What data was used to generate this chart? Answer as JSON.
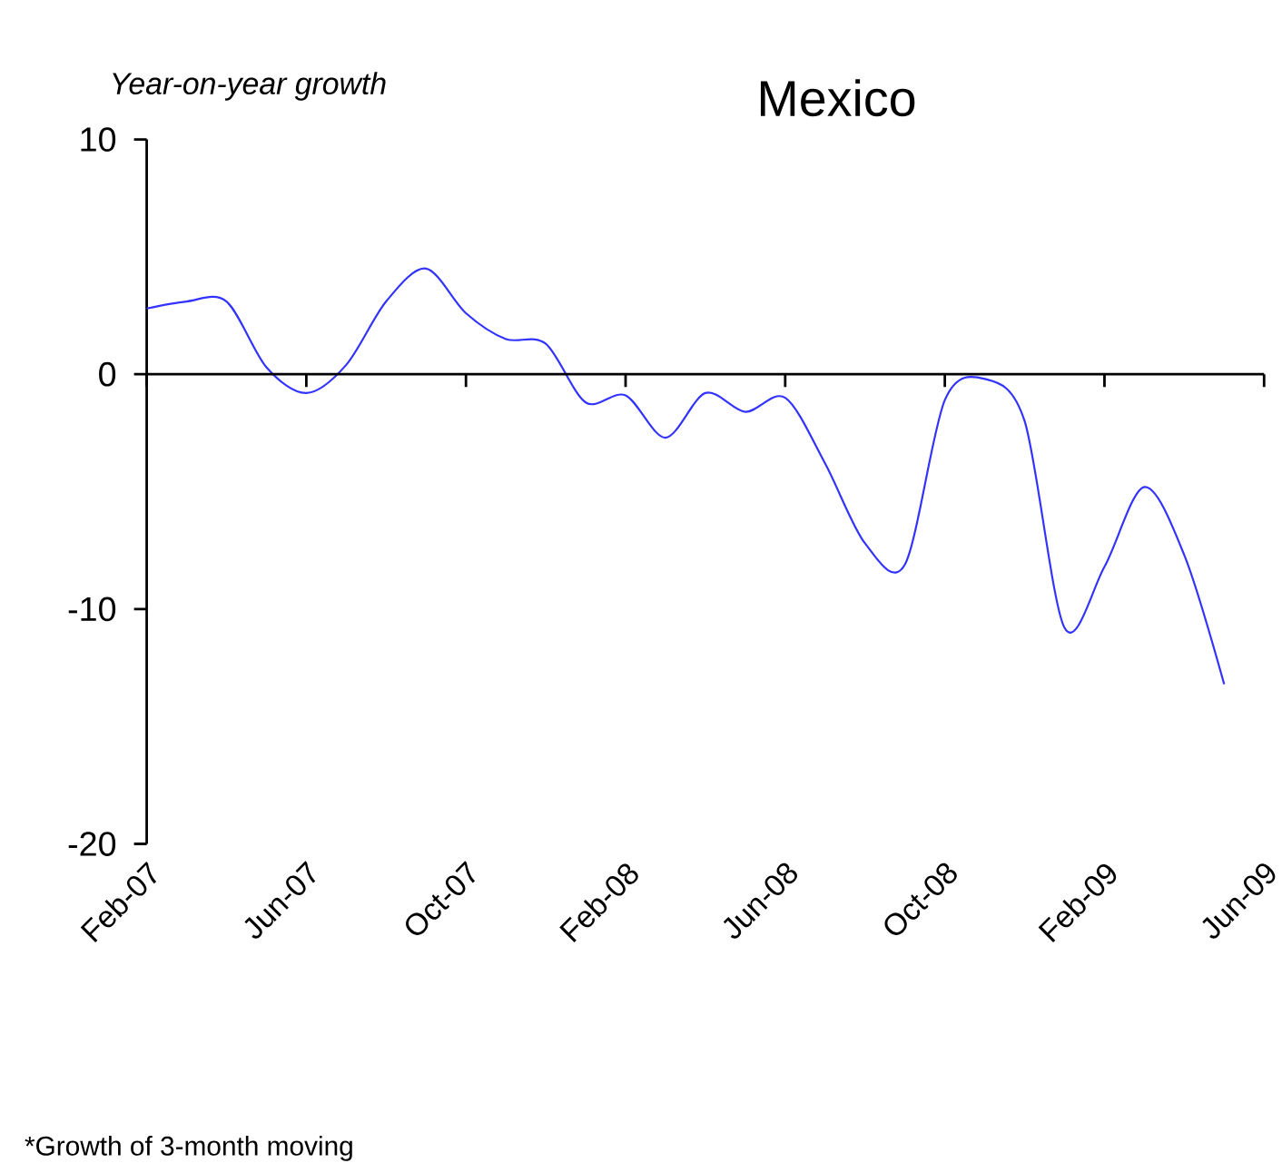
{
  "chart_data": {
    "type": "line",
    "title": "Mexico",
    "ylabel": "Year-on-year growth",
    "annotations": [
      "*Growth of 3-month moving"
    ],
    "x": [
      "2007-02",
      "2007-03",
      "2007-04",
      "2007-05",
      "2007-06",
      "2007-07",
      "2007-08",
      "2007-09",
      "2007-10",
      "2007-11",
      "2007-12",
      "2008-01",
      "2008-02",
      "2008-03",
      "2008-04",
      "2008-05",
      "2008-06",
      "2008-07",
      "2008-08",
      "2008-09",
      "2008-10",
      "2008-11",
      "2008-12",
      "2009-01",
      "2009-02",
      "2009-03",
      "2009-04",
      "2009-05"
    ],
    "series": [
      {
        "color": "#3333ff",
        "values": [
          2.8,
          3.1,
          3.1,
          0.3,
          -0.8,
          0.4,
          3.1,
          4.5,
          2.6,
          1.5,
          1.3,
          -1.2,
          -0.9,
          -2.7,
          -0.8,
          -1.6,
          -1.0,
          -3.8,
          -7.2,
          -8.1,
          -1.1,
          -0.2,
          -2.0,
          -10.8,
          -8.2,
          -4.8,
          -7.7,
          -13.2
        ]
      }
    ],
    "xlim": [
      "2007-02",
      "2009-06"
    ],
    "xticks": [
      {
        "value": "2007-02",
        "label": "Feb-07"
      },
      {
        "value": "2007-06",
        "label": "Jun-07"
      },
      {
        "value": "2007-10",
        "label": "Oct-07"
      },
      {
        "value": "2008-02",
        "label": "Feb-08"
      },
      {
        "value": "2008-06",
        "label": "Jun-08"
      },
      {
        "value": "2008-10",
        "label": "Oct-08"
      },
      {
        "value": "2009-02",
        "label": "Feb-09"
      },
      {
        "value": "2009-06",
        "label": "Jun-09"
      }
    ],
    "ylim": [
      -20,
      10
    ],
    "yticks": [
      -20,
      -10,
      0,
      10
    ]
  }
}
